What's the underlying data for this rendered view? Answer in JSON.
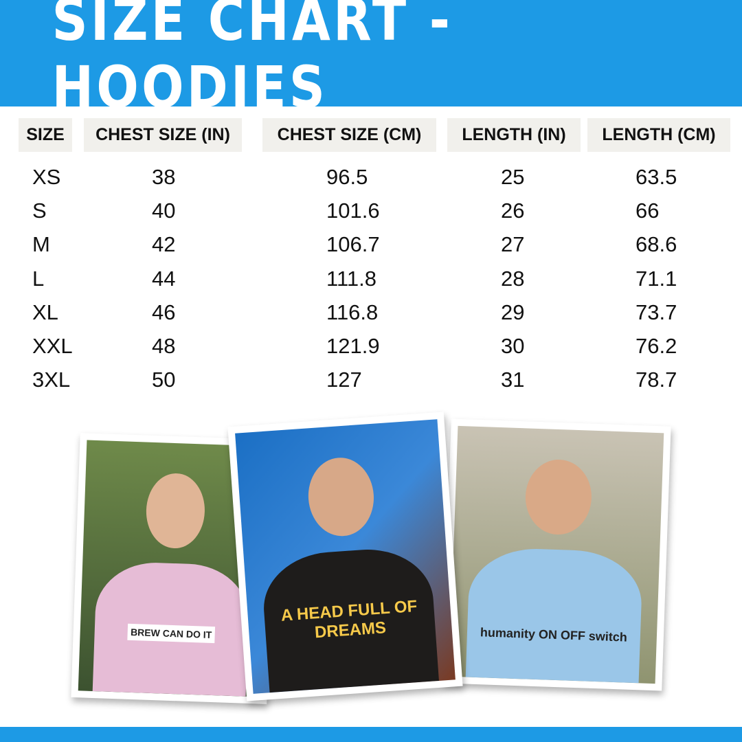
{
  "title": "SIZE CHART - HOODIES",
  "colors": {
    "brand_blue": "#1d9ae5",
    "header_bg": "#f1f0ec"
  },
  "table": {
    "headers": [
      "SIZE",
      "CHEST SIZE (IN)",
      "CHEST SIZE (CM)",
      "LENGTH (IN)",
      "LENGTH (CM)"
    ],
    "rows": [
      [
        "XS",
        "38",
        "96.5",
        "25",
        "63.5"
      ],
      [
        "S",
        "40",
        "101.6",
        "26",
        "66"
      ],
      [
        "M",
        "42",
        "106.7",
        "27",
        "68.6"
      ],
      [
        "L",
        "44",
        "111.8",
        "28",
        "71.1"
      ],
      [
        "XL",
        "46",
        "116.8",
        "29",
        "73.7"
      ],
      [
        "XXL",
        "48",
        "121.9",
        "30",
        "76.2"
      ],
      [
        "3XL",
        "50",
        "127",
        "31",
        "78.7"
      ]
    ]
  },
  "photos": [
    {
      "hoodie_color": "#e6bcd6",
      "print": "BREW CAN DO IT"
    },
    {
      "hoodie_color": "#1e1c1b",
      "print": "A HEAD FULL OF DREAMS"
    },
    {
      "hoodie_color": "#9ac6e8",
      "print": "humanity ON OFF switch"
    }
  ]
}
